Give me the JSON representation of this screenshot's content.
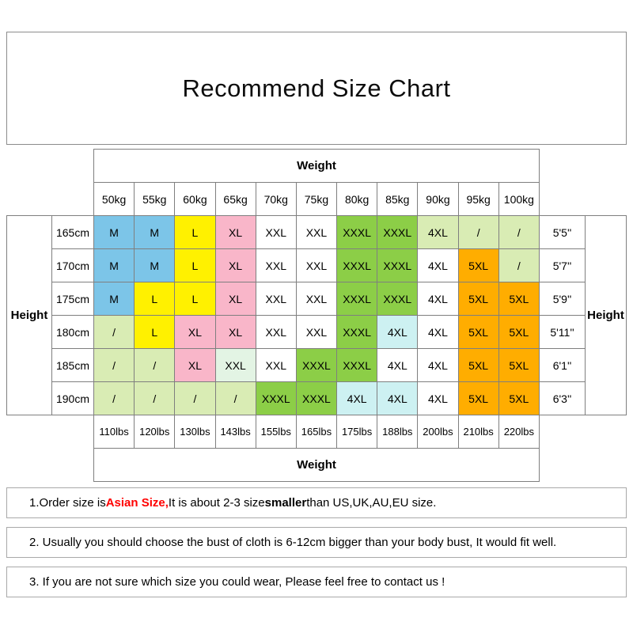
{
  "title": "Recommend Size Chart",
  "chart_data": {
    "type": "table",
    "title": "Recommend Size Chart",
    "weight_label": "Weight",
    "height_label": "Height",
    "weights_kg": [
      "50kg",
      "55kg",
      "60kg",
      "65kg",
      "70kg",
      "75kg",
      "80kg",
      "85kg",
      "90kg",
      "95kg",
      "100kg"
    ],
    "weights_lbs": [
      "110lbs",
      "120lbs",
      "130lbs",
      "143lbs",
      "155lbs",
      "165lbs",
      "175lbs",
      "188lbs",
      "200lbs",
      "210lbs",
      "220lbs"
    ],
    "colors": {
      "blue": "#7cc5e8",
      "yellow": "#fff100",
      "pink": "#f9b6c9",
      "green": "#8cce47",
      "pale_green": "#d9ecb4",
      "orange": "#ffad00",
      "cyan": "#cdf1f2",
      "mint": "#e3f4e4",
      "white": "#ffffff"
    },
    "rows": [
      {
        "height_cm": "165cm",
        "height_ft": "5'5''",
        "cells": [
          {
            "size": "M",
            "color": "blue"
          },
          {
            "size": "M",
            "color": "blue"
          },
          {
            "size": "L",
            "color": "yellow"
          },
          {
            "size": "XL",
            "color": "pink"
          },
          {
            "size": "XXL",
            "color": "white"
          },
          {
            "size": "XXL",
            "color": "white"
          },
          {
            "size": "XXXL",
            "color": "green"
          },
          {
            "size": "XXXL",
            "color": "green"
          },
          {
            "size": "4XL",
            "color": "pale_green"
          },
          {
            "size": "/",
            "color": "pale_green"
          },
          {
            "size": "/",
            "color": "pale_green"
          }
        ]
      },
      {
        "height_cm": "170cm",
        "height_ft": "5'7''",
        "cells": [
          {
            "size": "M",
            "color": "blue"
          },
          {
            "size": "M",
            "color": "blue"
          },
          {
            "size": "L",
            "color": "yellow"
          },
          {
            "size": "XL",
            "color": "pink"
          },
          {
            "size": "XXL",
            "color": "white"
          },
          {
            "size": "XXL",
            "color": "white"
          },
          {
            "size": "XXXL",
            "color": "green"
          },
          {
            "size": "XXXL",
            "color": "green"
          },
          {
            "size": "4XL",
            "color": "white"
          },
          {
            "size": "5XL",
            "color": "orange"
          },
          {
            "size": "/",
            "color": "pale_green"
          }
        ]
      },
      {
        "height_cm": "175cm",
        "height_ft": "5'9''",
        "cells": [
          {
            "size": "M",
            "color": "blue"
          },
          {
            "size": "L",
            "color": "yellow"
          },
          {
            "size": "L",
            "color": "yellow"
          },
          {
            "size": "XL",
            "color": "pink"
          },
          {
            "size": "XXL",
            "color": "white"
          },
          {
            "size": "XXL",
            "color": "white"
          },
          {
            "size": "XXXL",
            "color": "green"
          },
          {
            "size": "XXXL",
            "color": "green"
          },
          {
            "size": "4XL",
            "color": "white"
          },
          {
            "size": "5XL",
            "color": "orange"
          },
          {
            "size": "5XL",
            "color": "orange"
          }
        ]
      },
      {
        "height_cm": "180cm",
        "height_ft": "5'11''",
        "cells": [
          {
            "size": "/",
            "color": "pale_green"
          },
          {
            "size": "L",
            "color": "yellow"
          },
          {
            "size": "XL",
            "color": "pink"
          },
          {
            "size": "XL",
            "color": "pink"
          },
          {
            "size": "XXL",
            "color": "white"
          },
          {
            "size": "XXL",
            "color": "white"
          },
          {
            "size": "XXXL",
            "color": "green"
          },
          {
            "size": "4XL",
            "color": "cyan"
          },
          {
            "size": "4XL",
            "color": "white"
          },
          {
            "size": "5XL",
            "color": "orange"
          },
          {
            "size": "5XL",
            "color": "orange"
          }
        ]
      },
      {
        "height_cm": "185cm",
        "height_ft": "6'1''",
        "cells": [
          {
            "size": "/",
            "color": "pale_green"
          },
          {
            "size": "/",
            "color": "pale_green"
          },
          {
            "size": "XL",
            "color": "pink"
          },
          {
            "size": "XXL",
            "color": "mint"
          },
          {
            "size": "XXL",
            "color": "white"
          },
          {
            "size": "XXXL",
            "color": "green"
          },
          {
            "size": "XXXL",
            "color": "green"
          },
          {
            "size": "4XL",
            "color": "white"
          },
          {
            "size": "4XL",
            "color": "white"
          },
          {
            "size": "5XL",
            "color": "orange"
          },
          {
            "size": "5XL",
            "color": "orange"
          }
        ]
      },
      {
        "height_cm": "190cm",
        "height_ft": "6'3''",
        "cells": [
          {
            "size": "/",
            "color": "pale_green"
          },
          {
            "size": "/",
            "color": "pale_green"
          },
          {
            "size": "/",
            "color": "pale_green"
          },
          {
            "size": "/",
            "color": "pale_green"
          },
          {
            "size": "XXXL",
            "color": "green"
          },
          {
            "size": "XXXL",
            "color": "green"
          },
          {
            "size": "4XL",
            "color": "cyan"
          },
          {
            "size": "4XL",
            "color": "cyan"
          },
          {
            "size": "4XL",
            "color": "white"
          },
          {
            "size": "5XL",
            "color": "orange"
          },
          {
            "size": "5XL",
            "color": "orange"
          }
        ]
      }
    ]
  },
  "notes": [
    {
      "segments": [
        {
          "text": "1.Order size is ",
          "style": "normal"
        },
        {
          "text": "Asian Size,",
          "style": "red-bold"
        },
        {
          "text": " It is about 2-3 size ",
          "style": "normal"
        },
        {
          "text": "smaller",
          "style": "bold"
        },
        {
          "text": " than US,UK,AU,EU size.",
          "style": "normal"
        }
      ]
    },
    {
      "segments": [
        {
          "text": "2. Usually you should choose the bust of cloth is 6-12cm bigger than your body bust, It would fit well.",
          "style": "normal"
        }
      ]
    },
    {
      "segments": [
        {
          "text": "3. If you are not sure which size you could wear, Please feel free to contact us !",
          "style": "normal"
        }
      ]
    }
  ]
}
